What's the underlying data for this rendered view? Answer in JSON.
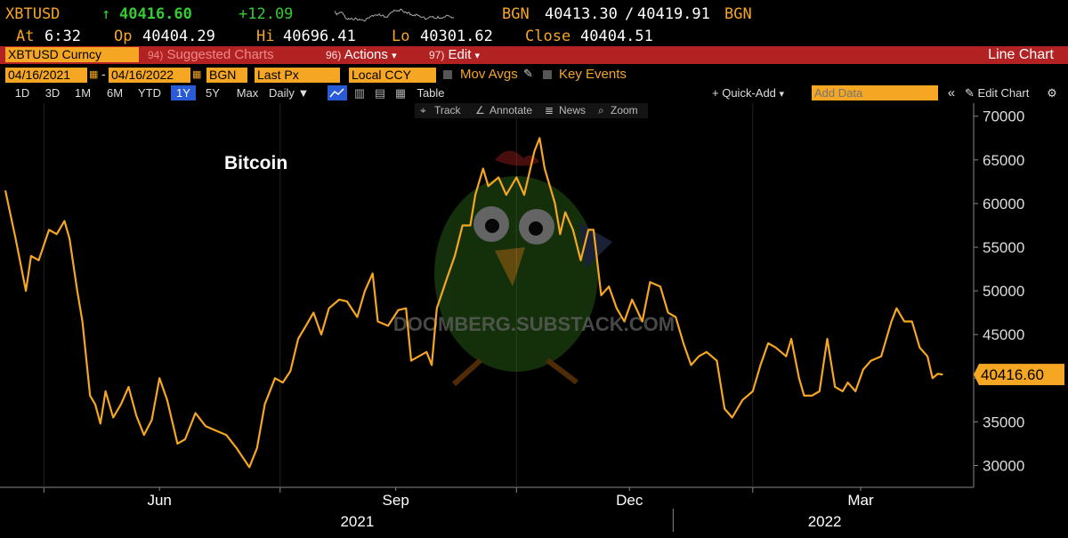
{
  "header": {
    "ticker": "XBTUSD",
    "last_arrow": "↑",
    "last": "40416.60",
    "change": "+12.09",
    "src1": "BGN",
    "bid": "40413.30",
    "slash": "/",
    "ask": "40419.91",
    "src2": "BGN",
    "at_label": "At",
    "at_time": "6:32",
    "op_label": "Op",
    "op": "40404.29",
    "hi_label": "Hi",
    "hi": "40696.41",
    "lo_label": "Lo",
    "lo": "40301.62",
    "close_label": "Close",
    "close": "40404.51"
  },
  "toolbar": {
    "security": "XBTUSD Curncy",
    "suggested_num": "94)",
    "suggested": "Suggested Charts",
    "actions_num": "96)",
    "actions": "Actions",
    "edit_num": "97)",
    "edit": "Edit",
    "chart_type": "Line Chart",
    "start_date": "04/16/2021",
    "date_sep": "-",
    "end_date": "04/16/2022",
    "source": "BGN",
    "field": "Last Px",
    "currency": "Local CCY",
    "mov_avgs": "Mov Avgs",
    "key_events": "Key Events",
    "periods": [
      "1D",
      "3D",
      "1M",
      "6M",
      "YTD",
      "1Y",
      "5Y",
      "Max"
    ],
    "active_period": "1Y",
    "frequency": "Daily",
    "table": "Table",
    "quick_add": "Quick-Add",
    "add_data_placeholder": "Add Data",
    "edit_chart": "Edit Chart",
    "track": "Track",
    "annotate": "Annotate",
    "news": "News",
    "zoom": "Zoom",
    "dropdown_glyph": "▾",
    "collapse_glyph": "«"
  },
  "watermark": "DOOMBERG.SUBSTACK.COM",
  "colors": {
    "line": "#f5a623",
    "background": "#000000",
    "accent_red": "#b22222",
    "up": "#33cc33"
  },
  "chart_data": {
    "type": "line",
    "title": "Bitcoin",
    "xlabel": "",
    "ylabel": "",
    "ylim": [
      27500,
      71500
    ],
    "yticks": [
      30000,
      35000,
      40000,
      45000,
      50000,
      55000,
      60000,
      65000,
      70000
    ],
    "ytick_labels": [
      "30000",
      "35000",
      "40000",
      "45000",
      "50000",
      "55000",
      "60000",
      "65000",
      "70000"
    ],
    "x_month_labels": [
      "Jun",
      "Sep",
      "Dec",
      "Mar"
    ],
    "x_year_labels": [
      "2021",
      "2022"
    ],
    "last_value_label": "40416.60",
    "series": [
      {
        "values": [
          [
            "2021-04-16",
            61500
          ],
          [
            "2021-04-20",
            56000
          ],
          [
            "2021-04-24",
            50000
          ],
          [
            "2021-04-26",
            54000
          ],
          [
            "2021-04-29",
            53500
          ],
          [
            "2021-05-03",
            57000
          ],
          [
            "2021-05-06",
            56500
          ],
          [
            "2021-05-09",
            58000
          ],
          [
            "2021-05-11",
            56000
          ],
          [
            "2021-05-14",
            50000
          ],
          [
            "2021-05-16",
            46500
          ],
          [
            "2021-05-19",
            38000
          ],
          [
            "2021-05-21",
            37000
          ],
          [
            "2021-05-23",
            34800
          ],
          [
            "2021-05-25",
            38500
          ],
          [
            "2021-05-28",
            35500
          ],
          [
            "2021-05-31",
            37000
          ],
          [
            "2021-06-03",
            39000
          ],
          [
            "2021-06-06",
            35700
          ],
          [
            "2021-06-09",
            33500
          ],
          [
            "2021-06-12",
            35200
          ],
          [
            "2021-06-15",
            40000
          ],
          [
            "2021-06-18",
            37500
          ],
          [
            "2021-06-22",
            32500
          ],
          [
            "2021-06-25",
            33000
          ],
          [
            "2021-06-29",
            36000
          ],
          [
            "2021-07-03",
            34500
          ],
          [
            "2021-07-07",
            34000
          ],
          [
            "2021-07-11",
            33500
          ],
          [
            "2021-07-15",
            32000
          ],
          [
            "2021-07-20",
            29800
          ],
          [
            "2021-07-23",
            32000
          ],
          [
            "2021-07-26",
            37000
          ],
          [
            "2021-07-30",
            40000
          ],
          [
            "2021-08-02",
            39500
          ],
          [
            "2021-08-05",
            40800
          ],
          [
            "2021-08-08",
            44500
          ],
          [
            "2021-08-11",
            46000
          ],
          [
            "2021-08-14",
            47500
          ],
          [
            "2021-08-17",
            45000
          ],
          [
            "2021-08-20",
            48000
          ],
          [
            "2021-08-24",
            49000
          ],
          [
            "2021-08-27",
            48800
          ],
          [
            "2021-08-31",
            47000
          ],
          [
            "2021-09-03",
            50000
          ],
          [
            "2021-09-06",
            52000
          ],
          [
            "2021-09-08",
            46500
          ],
          [
            "2021-09-12",
            46000
          ],
          [
            "2021-09-16",
            47800
          ],
          [
            "2021-09-19",
            48000
          ],
          [
            "2021-09-21",
            42000
          ],
          [
            "2021-09-24",
            42500
          ],
          [
            "2021-09-27",
            43000
          ],
          [
            "2021-09-29",
            41500
          ],
          [
            "2021-10-01",
            48000
          ],
          [
            "2021-10-05",
            51500
          ],
          [
            "2021-10-08",
            54000
          ],
          [
            "2021-10-11",
            57500
          ],
          [
            "2021-10-14",
            57500
          ],
          [
            "2021-10-16",
            61000
          ],
          [
            "2021-10-19",
            64000
          ],
          [
            "2021-10-21",
            62000
          ],
          [
            "2021-10-25",
            63000
          ],
          [
            "2021-10-28",
            61000
          ],
          [
            "2021-11-01",
            63000
          ],
          [
            "2021-11-04",
            61000
          ],
          [
            "2021-11-08",
            66000
          ],
          [
            "2021-11-10",
            67500
          ],
          [
            "2021-11-12",
            64000
          ],
          [
            "2021-11-16",
            60000
          ],
          [
            "2021-11-18",
            56500
          ],
          [
            "2021-11-20",
            59000
          ],
          [
            "2021-11-23",
            57000
          ],
          [
            "2021-11-26",
            53500
          ],
          [
            "2021-11-29",
            57000
          ],
          [
            "2021-12-01",
            57000
          ],
          [
            "2021-12-04",
            49500
          ],
          [
            "2021-12-07",
            50500
          ],
          [
            "2021-12-10",
            48000
          ],
          [
            "2021-12-13",
            46500
          ],
          [
            "2021-12-16",
            49000
          ],
          [
            "2021-12-20",
            46500
          ],
          [
            "2021-12-23",
            51000
          ],
          [
            "2021-12-27",
            50500
          ],
          [
            "2021-12-30",
            47500
          ],
          [
            "2022-01-02",
            47000
          ],
          [
            "2022-01-05",
            44000
          ],
          [
            "2022-01-08",
            41500
          ],
          [
            "2022-01-11",
            42500
          ],
          [
            "2022-01-14",
            43000
          ],
          [
            "2022-01-18",
            42000
          ],
          [
            "2022-01-21",
            36500
          ],
          [
            "2022-01-24",
            35500
          ],
          [
            "2022-01-28",
            37500
          ],
          [
            "2022-02-01",
            38500
          ],
          [
            "2022-02-04",
            41500
          ],
          [
            "2022-02-07",
            44000
          ],
          [
            "2022-02-10",
            43500
          ],
          [
            "2022-02-14",
            42500
          ],
          [
            "2022-02-16",
            44500
          ],
          [
            "2022-02-19",
            40000
          ],
          [
            "2022-02-21",
            38000
          ],
          [
            "2022-02-24",
            38000
          ],
          [
            "2022-02-27",
            38500
          ],
          [
            "2022-03-02",
            44500
          ],
          [
            "2022-03-05",
            39000
          ],
          [
            "2022-03-08",
            38500
          ],
          [
            "2022-03-10",
            39500
          ],
          [
            "2022-03-13",
            38500
          ],
          [
            "2022-03-16",
            41000
          ],
          [
            "2022-03-19",
            42000
          ],
          [
            "2022-03-23",
            42500
          ],
          [
            "2022-03-27",
            46500
          ],
          [
            "2022-03-29",
            48000
          ],
          [
            "2022-04-01",
            46500
          ],
          [
            "2022-04-04",
            46500
          ],
          [
            "2022-04-07",
            43500
          ],
          [
            "2022-04-10",
            42500
          ],
          [
            "2022-04-12",
            40000
          ],
          [
            "2022-04-14",
            40500
          ],
          [
            "2022-04-16",
            40416.6
          ]
        ]
      }
    ]
  }
}
